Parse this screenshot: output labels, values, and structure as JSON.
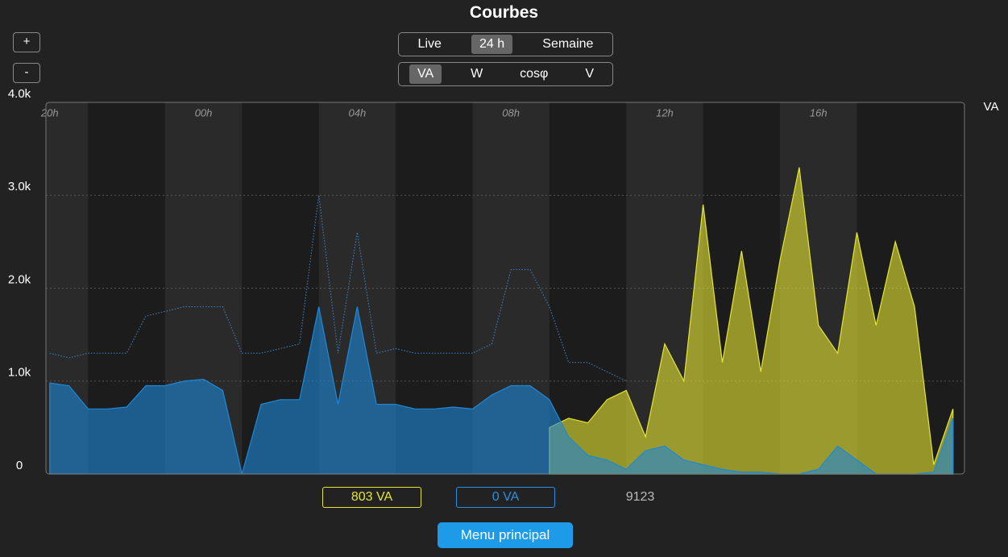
{
  "title": "Courbes",
  "zoom_buttons": [
    "+",
    "-"
  ],
  "period_buttons": [
    "Live",
    "24 h",
    "Semaine"
  ],
  "period_selected": 1,
  "unit_buttons": [
    "VA",
    "W",
    "cosφ",
    "V"
  ],
  "unit_selected": 0,
  "readouts": [
    {
      "text": "803 VA",
      "color": "#e6e632"
    },
    {
      "text": "0 VA",
      "color": "#2a8fe0"
    },
    {
      "text": "9123",
      "color": "#bbbbbb"
    }
  ],
  "menu_button": "Menu principal",
  "chart_data": {
    "type": "area",
    "y_unit_label": "VA",
    "x": [
      0,
      0.5,
      1,
      1.5,
      2,
      2.5,
      3,
      3.5,
      4,
      4.5,
      5,
      5.5,
      6,
      6.5,
      7,
      7.5,
      8,
      8.5,
      9,
      9.5,
      10,
      10.5,
      11,
      11.5,
      12,
      12.5,
      13,
      13.5,
      14,
      14.5,
      15,
      15.5,
      16,
      16.5,
      17,
      17.5,
      18,
      18.5,
      19,
      19.5,
      20,
      20.5,
      21,
      21.5,
      22,
      22.5,
      23,
      23.5
    ],
    "xlim": [
      -0.1,
      23.8
    ],
    "xticks": [
      {
        "value": 0,
        "label": "20h"
      },
      {
        "value": 4,
        "label": "00h"
      },
      {
        "value": 8,
        "label": "04h"
      },
      {
        "value": 12,
        "label": "08h"
      },
      {
        "value": 16,
        "label": "12h"
      },
      {
        "value": 20,
        "label": "16h"
      }
    ],
    "ylim": [
      0,
      4000
    ],
    "yticks": [
      0,
      {
        "value": 1000,
        "label": "1.0k"
      },
      {
        "value": 2000,
        "label": "2.0k"
      },
      {
        "value": 3000,
        "label": "3.0k"
      },
      {
        "value": 4000,
        "label": "4.0k"
      }
    ],
    "grid": true,
    "series": [
      {
        "color": "#3a7ab8",
        "style": "dotted",
        "values": [
          1300,
          1250,
          1300,
          1300,
          1300,
          1700,
          1750,
          1800,
          1800,
          1800,
          1300,
          1300,
          1350,
          1400,
          3000,
          1300,
          2600,
          1300,
          1350,
          1300,
          1300,
          1300,
          1300,
          1400,
          2200,
          2200,
          1800,
          1200,
          1200,
          1100,
          1000,
          null,
          null,
          null,
          null,
          null,
          null,
          null,
          null,
          null,
          null,
          null,
          null,
          null,
          null,
          null,
          null,
          null
        ]
      },
      {
        "color": "#e6e632",
        "style": "filled",
        "values": [
          null,
          null,
          null,
          null,
          null,
          null,
          null,
          null,
          null,
          null,
          null,
          null,
          null,
          null,
          null,
          null,
          null,
          null,
          null,
          null,
          null,
          null,
          null,
          null,
          null,
          null,
          500,
          600,
          550,
          800,
          900,
          400,
          1400,
          1000,
          2900,
          1200,
          2400,
          1100,
          2300,
          3300,
          1600,
          1300,
          2600,
          1600,
          2500,
          1800,
          100,
          700
        ]
      },
      {
        "color": "#1e88d8",
        "style": "filled",
        "values": [
          980,
          950,
          700,
          700,
          720,
          950,
          950,
          1000,
          1020,
          900,
          0,
          750,
          800,
          800,
          1800,
          750,
          1800,
          750,
          750,
          700,
          700,
          720,
          700,
          850,
          950,
          950,
          800,
          400,
          200,
          150,
          50,
          250,
          300,
          150,
          100,
          50,
          20,
          20,
          0,
          0,
          50,
          300,
          150,
          0,
          0,
          0,
          20,
          600
        ]
      }
    ]
  }
}
